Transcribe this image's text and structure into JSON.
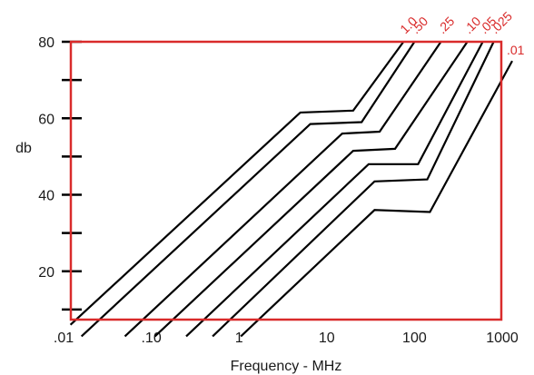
{
  "chart_data": {
    "type": "line",
    "title": "",
    "xlabel": "Frequency - MHz",
    "ylabel": "db",
    "x_scale": "log",
    "xlim": [
      0.01,
      1500
    ],
    "ylim": [
      0,
      80
    ],
    "grid": false,
    "frame_color": "#d92b2b",
    "label_color": "#d92b2b",
    "line_color": "#000000",
    "x_ticks": [
      {
        "value": 0.01,
        "label": ".01"
      },
      {
        "value": 0.1,
        "label": ".10"
      },
      {
        "value": 1,
        "label": "1"
      },
      {
        "value": 10,
        "label": "10"
      },
      {
        "value": 100,
        "label": "100"
      },
      {
        "value": 1000,
        "label": "1000"
      }
    ],
    "y_ticks": [
      {
        "value": 20,
        "label": "20"
      },
      {
        "value": 40,
        "label": "40"
      },
      {
        "value": 60,
        "label": "60"
      },
      {
        "value": 80,
        "label": "80"
      }
    ],
    "y_minor_ticks": [
      10,
      30,
      50,
      70
    ],
    "series": [
      {
        "name": "1.0",
        "points": [
          [
            0.012,
            6
          ],
          [
            5,
            61.5
          ],
          [
            20,
            62
          ],
          [
            75,
            80
          ]
        ]
      },
      {
        "name": ".50",
        "points": [
          [
            0.016,
            3
          ],
          [
            6.5,
            58.5
          ],
          [
            25,
            59
          ],
          [
            100,
            80
          ]
        ]
      },
      {
        "name": ".25",
        "points": [
          [
            0.05,
            3
          ],
          [
            15,
            56
          ],
          [
            40,
            56.5
          ],
          [
            200,
            80
          ]
        ]
      },
      {
        "name": ".10",
        "points": [
          [
            0.11,
            3
          ],
          [
            20,
            51.5
          ],
          [
            60,
            52
          ],
          [
            400,
            80
          ]
        ]
      },
      {
        "name": ".05",
        "points": [
          [
            0.25,
            3
          ],
          [
            30,
            48
          ],
          [
            110,
            48
          ],
          [
            600,
            80
          ]
        ]
      },
      {
        "name": ".025",
        "points": [
          [
            0.5,
            3
          ],
          [
            35,
            43.5
          ],
          [
            140,
            44
          ],
          [
            800,
            80
          ]
        ]
      },
      {
        "name": ".01",
        "points": [
          [
            1.05,
            3
          ],
          [
            35,
            36
          ],
          [
            150,
            35.5
          ],
          [
            1300,
            75
          ]
        ]
      }
    ]
  }
}
